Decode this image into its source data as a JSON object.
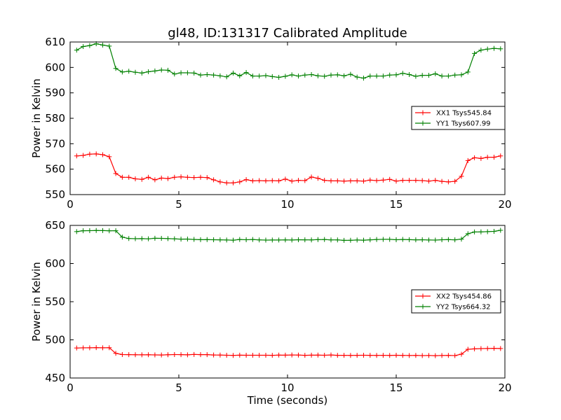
{
  "chart_data": [
    {
      "type": "line",
      "title": "gl48, ID:131317 Calibrated Amplitude",
      "xlabel": "",
      "ylabel": "Power in Kelvin",
      "xlim": [
        0,
        20
      ],
      "ylim": [
        550,
        610
      ],
      "xticks": [
        0,
        5,
        10,
        15,
        20
      ],
      "yticks": [
        550,
        560,
        570,
        580,
        590,
        600,
        610
      ],
      "grid": false,
      "legend_position": "center-right",
      "x": [
        0.3,
        0.6,
        0.9,
        1.2,
        1.5,
        1.8,
        2.1,
        2.4,
        2.7,
        3.0,
        3.3,
        3.6,
        3.9,
        4.2,
        4.5,
        4.8,
        5.1,
        5.4,
        5.7,
        6.0,
        6.3,
        6.6,
        6.9,
        7.2,
        7.5,
        7.8,
        8.1,
        8.4,
        8.7,
        9.0,
        9.3,
        9.6,
        9.9,
        10.2,
        10.5,
        10.8,
        11.1,
        11.4,
        11.7,
        12.0,
        12.3,
        12.6,
        12.9,
        13.2,
        13.5,
        13.8,
        14.1,
        14.4,
        14.7,
        15.0,
        15.3,
        15.6,
        15.9,
        16.2,
        16.5,
        16.8,
        17.1,
        17.4,
        17.7,
        18.0,
        18.3,
        18.6,
        18.9,
        19.2,
        19.5,
        19.8
      ],
      "series": [
        {
          "name": "XX1 Tsys545.84",
          "color": "#ff0000",
          "values": [
            565.2,
            565.4,
            565.9,
            566.0,
            565.7,
            564.9,
            558.3,
            556.8,
            556.8,
            556.2,
            556.0,
            556.8,
            555.8,
            556.5,
            556.3,
            556.8,
            557.0,
            556.8,
            556.7,
            556.8,
            556.7,
            555.8,
            555.0,
            554.6,
            554.6,
            555.0,
            555.9,
            555.4,
            555.5,
            555.4,
            555.5,
            555.4,
            556.1,
            555.3,
            555.6,
            555.5,
            556.9,
            556.4,
            555.6,
            555.4,
            555.4,
            555.3,
            555.4,
            555.4,
            555.3,
            555.7,
            555.5,
            555.7,
            556.0,
            555.3,
            555.6,
            555.6,
            555.6,
            555.5,
            555.3,
            555.6,
            555.2,
            555.0,
            555.2,
            557.2,
            563.4,
            564.5,
            564.2,
            564.7,
            564.7,
            565.2
          ]
        },
        {
          "name": "YY1 Tsys607.99",
          "color": "#008000",
          "values": [
            606.8,
            608.2,
            608.6,
            609.3,
            608.8,
            608.4,
            599.6,
            598.2,
            598.5,
            598.1,
            597.8,
            598.3,
            598.6,
            599.0,
            598.9,
            597.4,
            597.9,
            597.9,
            597.8,
            597.0,
            597.2,
            597.0,
            596.7,
            596.3,
            597.8,
            596.7,
            598.0,
            596.6,
            596.6,
            596.8,
            596.4,
            596.1,
            596.5,
            597.1,
            596.6,
            597.0,
            597.2,
            596.7,
            596.5,
            597.0,
            597.1,
            596.7,
            597.3,
            596.2,
            595.8,
            596.6,
            596.6,
            596.6,
            597.0,
            597.1,
            597.7,
            597.2,
            596.5,
            596.9,
            596.9,
            597.5,
            596.6,
            596.6,
            597.0,
            597.1,
            598.2,
            605.5,
            606.8,
            607.2,
            607.5,
            607.3
          ]
        }
      ]
    },
    {
      "type": "line",
      "title": "",
      "xlabel": "Time (seconds)",
      "ylabel": "Power in Kelvin",
      "xlim": [
        0,
        20
      ],
      "ylim": [
        450,
        650
      ],
      "xticks": [
        0,
        5,
        10,
        15,
        20
      ],
      "yticks": [
        450,
        500,
        550,
        600,
        650
      ],
      "grid": false,
      "legend_position": "center-right",
      "x": [
        0.3,
        0.6,
        0.9,
        1.2,
        1.5,
        1.8,
        2.1,
        2.4,
        2.7,
        3.0,
        3.3,
        3.6,
        3.9,
        4.2,
        4.5,
        4.8,
        5.1,
        5.4,
        5.7,
        6.0,
        6.3,
        6.6,
        6.9,
        7.2,
        7.5,
        7.8,
        8.1,
        8.4,
        8.7,
        9.0,
        9.3,
        9.6,
        9.9,
        10.2,
        10.5,
        10.8,
        11.1,
        11.4,
        11.7,
        12.0,
        12.3,
        12.6,
        12.9,
        13.2,
        13.5,
        13.8,
        14.1,
        14.4,
        14.7,
        15.0,
        15.3,
        15.6,
        15.9,
        16.2,
        16.5,
        16.8,
        17.1,
        17.4,
        17.7,
        18.0,
        18.3,
        18.6,
        18.9,
        19.2,
        19.5,
        19.8
      ],
      "series": [
        {
          "name": "XX2 Tsys454.86",
          "color": "#ff0000",
          "values": [
            489.3,
            489.5,
            489.6,
            489.8,
            489.6,
            489.7,
            482.3,
            480.7,
            480.6,
            480.5,
            480.4,
            480.5,
            480.3,
            480.2,
            480.5,
            480.7,
            480.6,
            480.4,
            480.9,
            480.6,
            480.6,
            480.2,
            480.1,
            479.8,
            479.6,
            479.9,
            479.8,
            479.8,
            479.8,
            479.8,
            479.7,
            480.0,
            479.9,
            480.2,
            480.1,
            479.7,
            479.9,
            480.0,
            479.8,
            480.2,
            479.7,
            479.7,
            479.6,
            479.7,
            479.8,
            479.7,
            479.6,
            479.7,
            479.6,
            479.8,
            479.6,
            479.5,
            479.6,
            479.4,
            479.5,
            479.3,
            479.5,
            479.6,
            479.4,
            481.2,
            487.6,
            488.2,
            488.5,
            488.7,
            488.9,
            488.6
          ]
        },
        {
          "name": "YY2 Tsys664.32",
          "color": "#008000",
          "values": [
            641.9,
            643.0,
            643.1,
            643.3,
            643.2,
            642.9,
            643.0,
            634.6,
            632.8,
            632.6,
            632.7,
            632.4,
            633.1,
            633.0,
            632.7,
            632.4,
            632.0,
            632.1,
            631.6,
            631.3,
            631.4,
            631.2,
            631.1,
            630.9,
            630.6,
            631.5,
            631.2,
            631.5,
            631.0,
            630.7,
            630.8,
            630.8,
            631.0,
            630.8,
            631.2,
            631.1,
            631.0,
            631.4,
            631.5,
            631.0,
            631.0,
            630.4,
            630.5,
            630.8,
            630.6,
            631.1,
            631.5,
            631.7,
            631.7,
            631.2,
            631.6,
            631.3,
            631.1,
            631.2,
            630.9,
            630.7,
            631.2,
            631.4,
            631.1,
            632.0,
            639.1,
            641.4,
            641.5,
            641.8,
            642.2,
            643.6
          ]
        }
      ]
    }
  ]
}
